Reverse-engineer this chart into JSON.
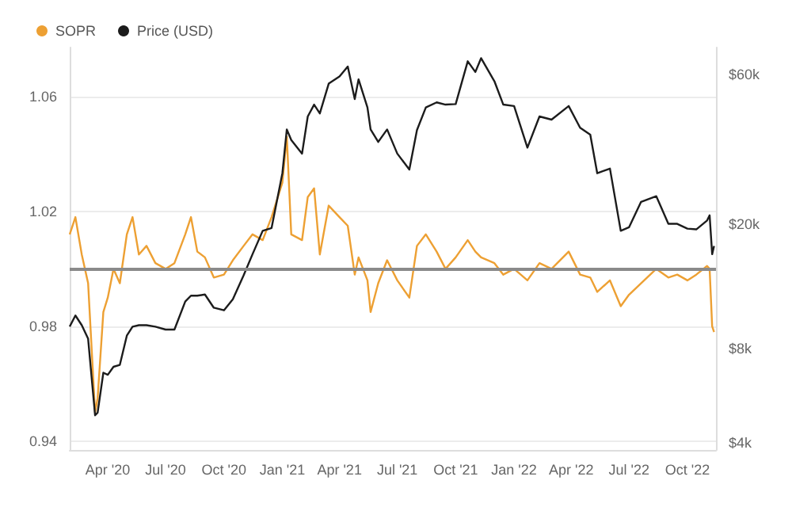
{
  "chart_data": {
    "type": "line",
    "x": [
      "2020-02-01",
      "2020-02-10",
      "2020-02-20",
      "2020-03-01",
      "2020-03-12",
      "2020-03-16",
      "2020-03-25",
      "2020-04-01",
      "2020-04-10",
      "2020-04-20",
      "2020-05-01",
      "2020-05-10",
      "2020-05-20",
      "2020-06-01",
      "2020-06-15",
      "2020-07-01",
      "2020-07-15",
      "2020-08-01",
      "2020-08-10",
      "2020-08-20",
      "2020-09-01",
      "2020-09-15",
      "2020-10-01",
      "2020-10-15",
      "2020-11-01",
      "2020-11-15",
      "2020-12-01",
      "2020-12-15",
      "2021-01-01",
      "2021-01-08",
      "2021-01-15",
      "2021-02-01",
      "2021-02-10",
      "2021-02-20",
      "2021-03-01",
      "2021-03-15",
      "2021-04-01",
      "2021-04-14",
      "2021-04-25",
      "2021-05-01",
      "2021-05-15",
      "2021-05-20",
      "2021-06-01",
      "2021-06-15",
      "2021-07-01",
      "2021-07-20",
      "2021-08-01",
      "2021-08-15",
      "2021-09-01",
      "2021-09-15",
      "2021-10-01",
      "2021-10-20",
      "2021-11-01",
      "2021-11-10",
      "2021-12-01",
      "2021-12-15",
      "2022-01-01",
      "2022-01-22",
      "2022-02-10",
      "2022-03-01",
      "2022-03-28",
      "2022-04-15",
      "2022-05-01",
      "2022-05-12",
      "2022-06-01",
      "2022-06-18",
      "2022-07-01",
      "2022-07-20",
      "2022-08-13",
      "2022-09-01",
      "2022-09-15",
      "2022-10-01",
      "2022-10-15",
      "2022-11-01",
      "2022-11-05",
      "2022-11-09",
      "2022-11-12"
    ],
    "series": [
      {
        "name": "SOPR",
        "color": "#eda033",
        "values": [
          1.012,
          1.018,
          1.005,
          0.995,
          0.95,
          0.955,
          0.985,
          0.99,
          1.0,
          0.995,
          1.012,
          1.018,
          1.005,
          1.008,
          1.002,
          1.0,
          1.002,
          1.012,
          1.018,
          1.006,
          1.004,
          0.997,
          0.998,
          1.003,
          1.008,
          1.012,
          1.01,
          1.018,
          1.03,
          1.046,
          1.012,
          1.01,
          1.025,
          1.028,
          1.005,
          1.022,
          1.018,
          1.015,
          0.998,
          1.004,
          0.996,
          0.985,
          0.995,
          1.003,
          0.996,
          0.99,
          1.008,
          1.012,
          1.006,
          1.0,
          1.004,
          1.01,
          1.006,
          1.004,
          1.002,
          0.998,
          1.0,
          0.996,
          1.002,
          1.0,
          1.006,
          0.998,
          0.997,
          0.992,
          0.996,
          0.987,
          0.991,
          0.995,
          1.0,
          0.997,
          0.998,
          0.996,
          0.998,
          1.001,
          1.0,
          0.98,
          0.978
        ]
      },
      {
        "name": "Price (USD)",
        "color": "#1c1c1c",
        "axis": "y2",
        "values": [
          9400,
          10200,
          9500,
          8600,
          4900,
          5000,
          6700,
          6600,
          7000,
          7100,
          8800,
          9400,
          9500,
          9500,
          9400,
          9200,
          9200,
          11300,
          11800,
          11800,
          11900,
          10800,
          10600,
          11500,
          13700,
          16000,
          19000,
          19400,
          29000,
          40000,
          37000,
          33500,
          44000,
          48000,
          45000,
          56000,
          59000,
          63500,
          50000,
          57800,
          47000,
          40000,
          36500,
          40000,
          33500,
          29800,
          39800,
          47000,
          48800,
          48000,
          48200,
          66000,
          61000,
          67500,
          57000,
          48000,
          47500,
          35000,
          44000,
          43000,
          47500,
          40500,
          38500,
          29000,
          30000,
          19000,
          19500,
          23500,
          24500,
          20000,
          20000,
          19300,
          19200,
          20500,
          21300,
          16000,
          17000
        ]
      }
    ],
    "xlim": [
      "2020-02-01",
      "2022-11-15"
    ],
    "xticks": [
      {
        "value": "2020-04-01",
        "label": "Apr '20"
      },
      {
        "value": "2020-07-01",
        "label": "Jul '20"
      },
      {
        "value": "2020-10-01",
        "label": "Oct '20"
      },
      {
        "value": "2021-01-01",
        "label": "Jan '21"
      },
      {
        "value": "2021-04-01",
        "label": "Apr '21"
      },
      {
        "value": "2021-07-01",
        "label": "Jul '21"
      },
      {
        "value": "2021-10-01",
        "label": "Oct '21"
      },
      {
        "value": "2022-01-01",
        "label": "Jan '22"
      },
      {
        "value": "2022-04-01",
        "label": "Apr '22"
      },
      {
        "value": "2022-07-01",
        "label": "Jul '22"
      },
      {
        "value": "2022-10-01",
        "label": "Oct '22"
      }
    ],
    "ylim": [
      0.937,
      1.077
    ],
    "yticks": [
      0.94,
      0.98,
      1.02,
      1.06
    ],
    "y2lim": [
      3800,
      73000
    ],
    "y2ticks": [
      {
        "value": 4000,
        "label": "$4k"
      },
      {
        "value": 8000,
        "label": "$8k"
      },
      {
        "value": 20000,
        "label": "$20k"
      },
      {
        "value": 60000,
        "label": "$60k"
      }
    ],
    "log": "y2",
    "ref_lines": [
      {
        "axis": "y",
        "value": 1,
        "color": "#8a8a8a"
      }
    ],
    "grid": "y",
    "legend": "top left",
    "marker": "none",
    "line_style": "solid"
  }
}
